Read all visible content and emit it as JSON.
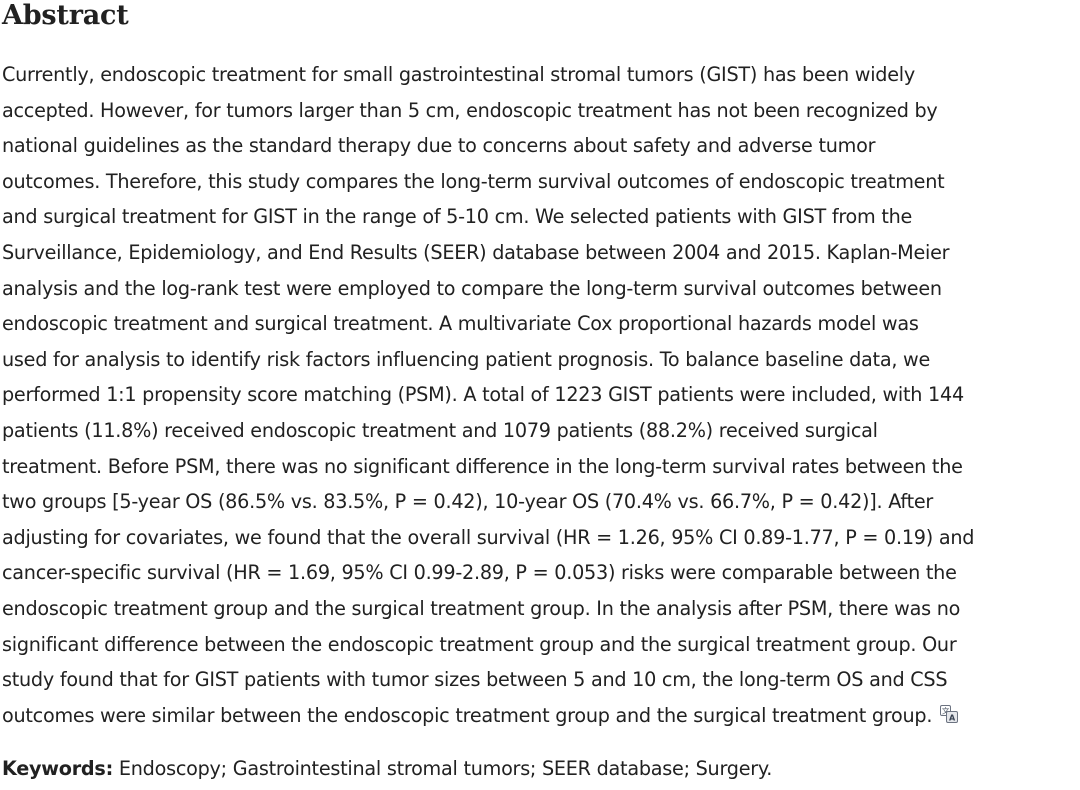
{
  "abstract": {
    "heading": "Abstract",
    "lines": [
      "Currently, endoscopic treatment for small gastrointestinal stromal tumors (GIST) has been widely",
      "accepted. However, for tumors larger than 5 cm, endoscopic treatment has not been recognized by",
      "national guidelines as the standard therapy due to concerns about safety and adverse tumor",
      "outcomes. Therefore, this study compares the long-term survival outcomes of endoscopic treatment",
      "and surgical treatment for GIST in the range of 5-10 cm. We selected patients with GIST from the",
      "Surveillance, Epidemiology, and End Results (SEER) database between 2004 and 2015. Kaplan-Meier",
      "analysis and the log-rank test were employed to compare the long-term survival outcomes between",
      "endoscopic treatment and surgical treatment. A multivariate Cox proportional hazards model was",
      "used for analysis to identify risk factors influencing patient prognosis. To balance baseline data, we",
      "performed 1:1 propensity score matching (PSM). A total of 1223 GIST patients were included, with 144",
      "patients (11.8%) received endoscopic treatment and 1079 patients (88.2%) received surgical",
      "treatment. Before PSM, there was no significant difference in the long-term survival rates between the",
      "two groups [5-year OS (86.5% vs. 83.5%, P = 0.42), 10-year OS (70.4% vs. 66.7%, P = 0.42)]. After",
      "adjusting for covariates, we found that the overall survival (HR = 1.26, 95% CI 0.89-1.77, P = 0.19) and",
      "cancer-specific survival (HR = 1.69, 95% CI 0.99-2.89, P = 0.053) risks were comparable between the",
      "endoscopic treatment group and the surgical treatment group. In the analysis after PSM, there was no",
      "significant difference between the endoscopic treatment group and the surgical treatment group. Our",
      "study found that for GIST patients with tumor sizes between 5 and 10 cm, the long-term OS and CSS",
      "outcomes were similar between the endoscopic treatment group and the surgical treatment group."
    ],
    "translate_icon": "translate-icon"
  },
  "keywords": {
    "label": "Keywords:",
    "value": "Endoscopy; Gastrointestinal stromal tumors; SEER database; Surgery."
  }
}
